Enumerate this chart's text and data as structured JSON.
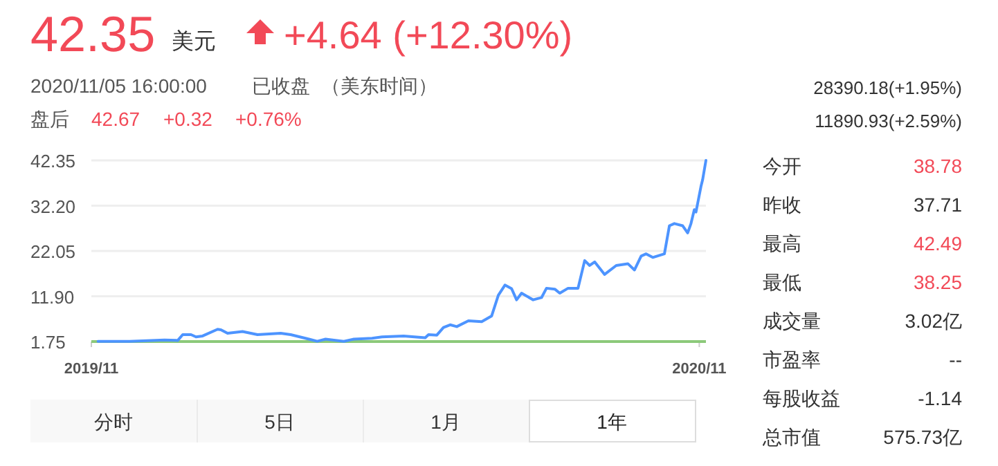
{
  "chart_data": {
    "type": "line",
    "x": [
      "2019-11-05",
      "2019-11-24",
      "2019-12-15",
      "2019-12-23",
      "2019-12-26",
      "2019-12-31",
      "2020-01-03",
      "2020-01-07",
      "2020-01-16",
      "2020-01-18",
      "2020-01-22",
      "2020-01-31",
      "2020-02-09",
      "2020-02-23",
      "2020-02-29",
      "2020-03-11",
      "2020-03-16",
      "2020-03-21",
      "2020-04-01",
      "2020-04-07",
      "2020-04-18",
      "2020-04-24",
      "2020-05-07",
      "2020-05-20",
      "2020-05-22",
      "2020-05-27",
      "2020-05-31",
      "2020-06-04",
      "2020-06-08",
      "2020-06-15",
      "2020-06-23",
      "2020-06-29",
      "2020-07-03",
      "2020-07-07",
      "2020-07-11",
      "2020-07-14",
      "2020-07-17",
      "2020-07-24",
      "2020-07-29",
      "2020-08-01",
      "2020-08-06",
      "2020-08-09",
      "2020-08-14",
      "2020-08-20",
      "2020-08-24",
      "2020-08-27",
      "2020-08-30",
      "2020-09-05",
      "2020-09-12",
      "2020-09-19",
      "2020-09-23",
      "2020-09-27",
      "2020-09-30",
      "2020-10-04",
      "2020-10-11",
      "2020-10-14",
      "2020-10-17",
      "2020-10-22",
      "2020-10-25",
      "2020-10-27",
      "2020-10-29",
      "2020-10-30",
      "2020-11-02",
      "2020-11-03",
      "2020-11-05"
    ],
    "series": [
      {
        "color": "#4d94ff",
        "values": [
          1.8,
          1.8,
          2.1,
          2.0,
          3.3,
          3.3,
          2.8,
          3.0,
          4.5,
          4.4,
          3.6,
          4.0,
          3.3,
          3.6,
          3.3,
          2.3,
          1.8,
          2.3,
          1.8,
          2.3,
          2.5,
          2.8,
          3.0,
          2.6,
          3.3,
          3.2,
          4.9,
          5.5,
          5.1,
          6.4,
          6.2,
          7.5,
          12.1,
          14.4,
          13.6,
          11.1,
          12.6,
          11.1,
          11.6,
          13.7,
          13.5,
          12.6,
          13.7,
          13.7,
          19.9,
          18.8,
          19.6,
          16.8,
          18.8,
          19.2,
          17.8,
          20.9,
          21.4,
          20.6,
          21.4,
          27.7,
          28.2,
          27.7,
          26.1,
          28.2,
          31.3,
          30.8,
          36.5,
          38.0,
          42.35
        ]
      }
    ],
    "xlim": [
      "2019-11-01",
      "2020-11-05"
    ],
    "xticks": [
      {
        "value": "2019-11-01",
        "label": "2019/11"
      },
      {
        "value": "2020-11-01",
        "label": "2020/11"
      }
    ],
    "ylim": [
      1.75,
      42.35
    ],
    "yticks": [
      1.75,
      {
        "value": 11.9,
        "label": "11.90"
      },
      22.05,
      {
        "value": 32.2,
        "label": "32.20"
      },
      42.35
    ],
    "grid": "y",
    "annotations": [
      "42.35",
      "美元",
      "+4.64 (+12.30%)",
      "2020/11/05 16:00:00",
      "已收盘",
      "（美东时间）",
      "盘后",
      "42.67",
      "+0.32",
      "+0.76%",
      "28390.18(+1.95%)",
      "11890.93(+2.59%)",
      "今开",
      "38.78",
      "昨收",
      "37.71",
      "最高",
      "42.49",
      "最低",
      "38.25",
      "成交量",
      "3.02亿",
      "市盈率",
      "--",
      "每股收益",
      "-1.14",
      "总市值",
      "575.73亿",
      "分时",
      "5日",
      "1月",
      "1年"
    ]
  }
}
